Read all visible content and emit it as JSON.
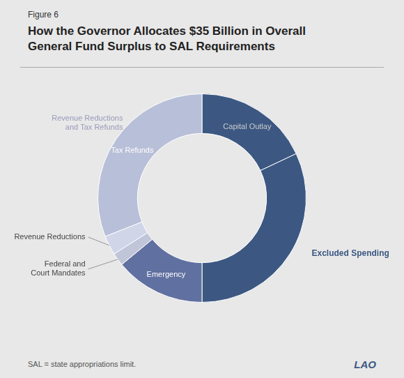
{
  "chart_data": {
    "type": "doughnut",
    "title": "How the Governor Allocates $35 Billion in Overall\nGeneral Fund Surplus to SAL Requirements",
    "subtitle": "Figure 6",
    "categories": [
      "Capital Outlay",
      "Excluded Spending",
      "Emergency",
      "Federal and\nCourt Mandates",
      "Revenue Reductions",
      "Tax Refunds"
    ],
    "values": [
      18,
      32,
      14,
      2,
      3,
      31
    ],
    "colors": [
      "#3c5882",
      "#3c5882",
      "#6070a0",
      "#c0c5d8",
      "#d0d5e8",
      "#b8bfd8"
    ],
    "annotations": [
      "Revenue Reductions\nand Tax Refunds",
      "SAL = state appropriations limit.",
      "LAO"
    ]
  }
}
